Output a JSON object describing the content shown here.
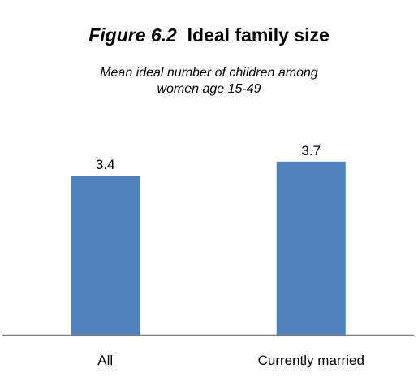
{
  "title": {
    "figure_label": "Figure 6.2",
    "text": "Ideal family size"
  },
  "subtitle": {
    "line1": "Mean ideal number of children among",
    "line2": "women age 15-49"
  },
  "chart_data": {
    "type": "bar",
    "title": "Figure 6.2  Ideal family size",
    "subtitle": "Mean ideal number of children among women age 15-49",
    "categories": [
      "All",
      "Currently married"
    ],
    "values": [
      3.4,
      3.7
    ],
    "value_labels": [
      "3.4",
      "3.7"
    ],
    "xlabel": "",
    "ylabel": "",
    "ylim": [
      0,
      4.0
    ],
    "grid": false,
    "legend": "none",
    "bar_color": "#4F81BD",
    "axis_color": "#7F7F7F"
  }
}
